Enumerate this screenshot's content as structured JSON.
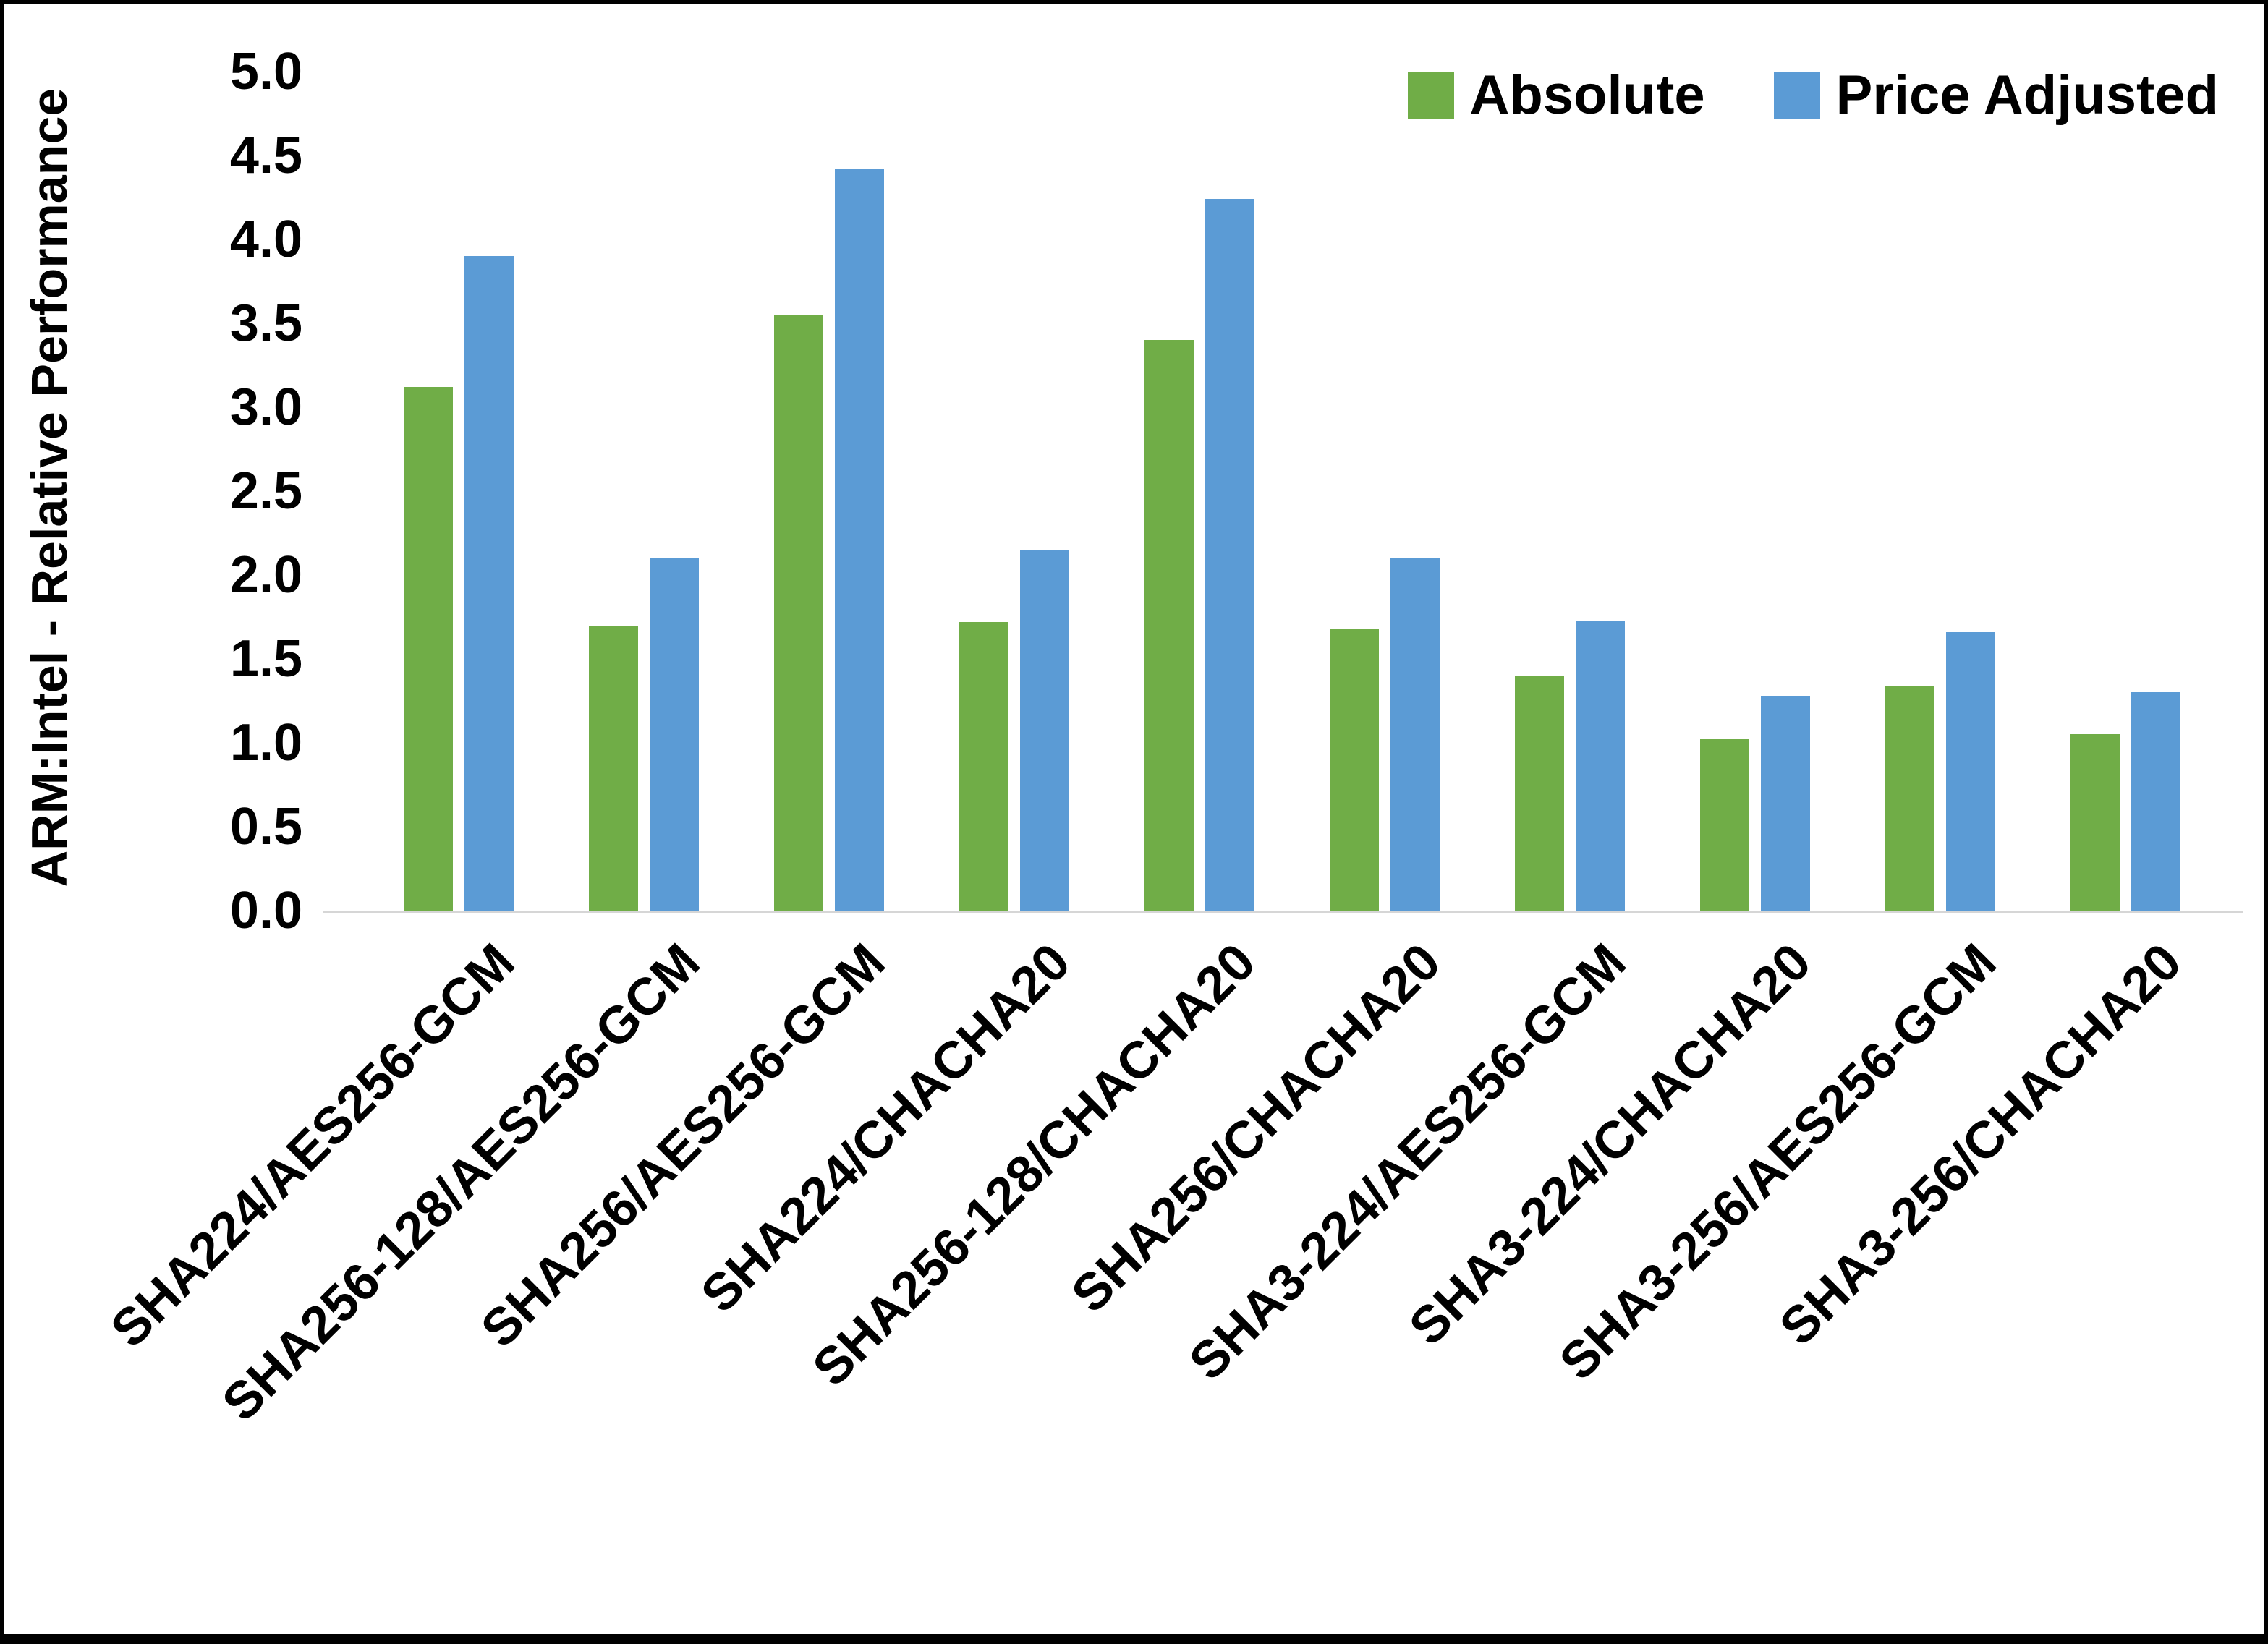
{
  "frame": {
    "background": "#ffffff",
    "border_color": "#000000",
    "axis_line_color": "#d6d6d6"
  },
  "y_axis": {
    "title": "ARM:Intel - Relative Performance"
  },
  "chart_data": {
    "type": "bar",
    "title": "",
    "xlabel": "",
    "ylabel": "ARM:Intel - Relative Performance",
    "ylim": [
      0,
      5
    ],
    "ytick_step": 0.5,
    "ytick_labels": [
      "0.0",
      "0.5",
      "1.0",
      "1.5",
      "2.0",
      "2.5",
      "3.0",
      "3.5",
      "4.0",
      "4.5",
      "5.0"
    ],
    "grid": false,
    "legend_position": "top-right",
    "categories": [
      "SHA224/AES256-GCM",
      "SHA256-128/AES256-GCM",
      "SHA256/AES256-GCM",
      "SHA224/CHACHA20",
      "SHA256-128/CHACHA20",
      "SHA256/CHACHA20",
      "SHA3-224/AES256-GCM",
      "SHA3-224/CHACHA20",
      "SHA3-256/AES256-GCM",
      "SHA3-256/CHACHA20"
    ],
    "series": [
      {
        "name": "Absolute",
        "color": "#70AD47",
        "values": [
          3.12,
          1.7,
          3.55,
          1.72,
          3.4,
          1.68,
          1.4,
          1.02,
          1.34,
          1.05
        ]
      },
      {
        "name": "Price Adjusted",
        "color": "#5B9BD5",
        "values": [
          3.9,
          2.1,
          4.42,
          2.15,
          4.24,
          2.1,
          1.73,
          1.28,
          1.66,
          1.3
        ]
      }
    ]
  }
}
